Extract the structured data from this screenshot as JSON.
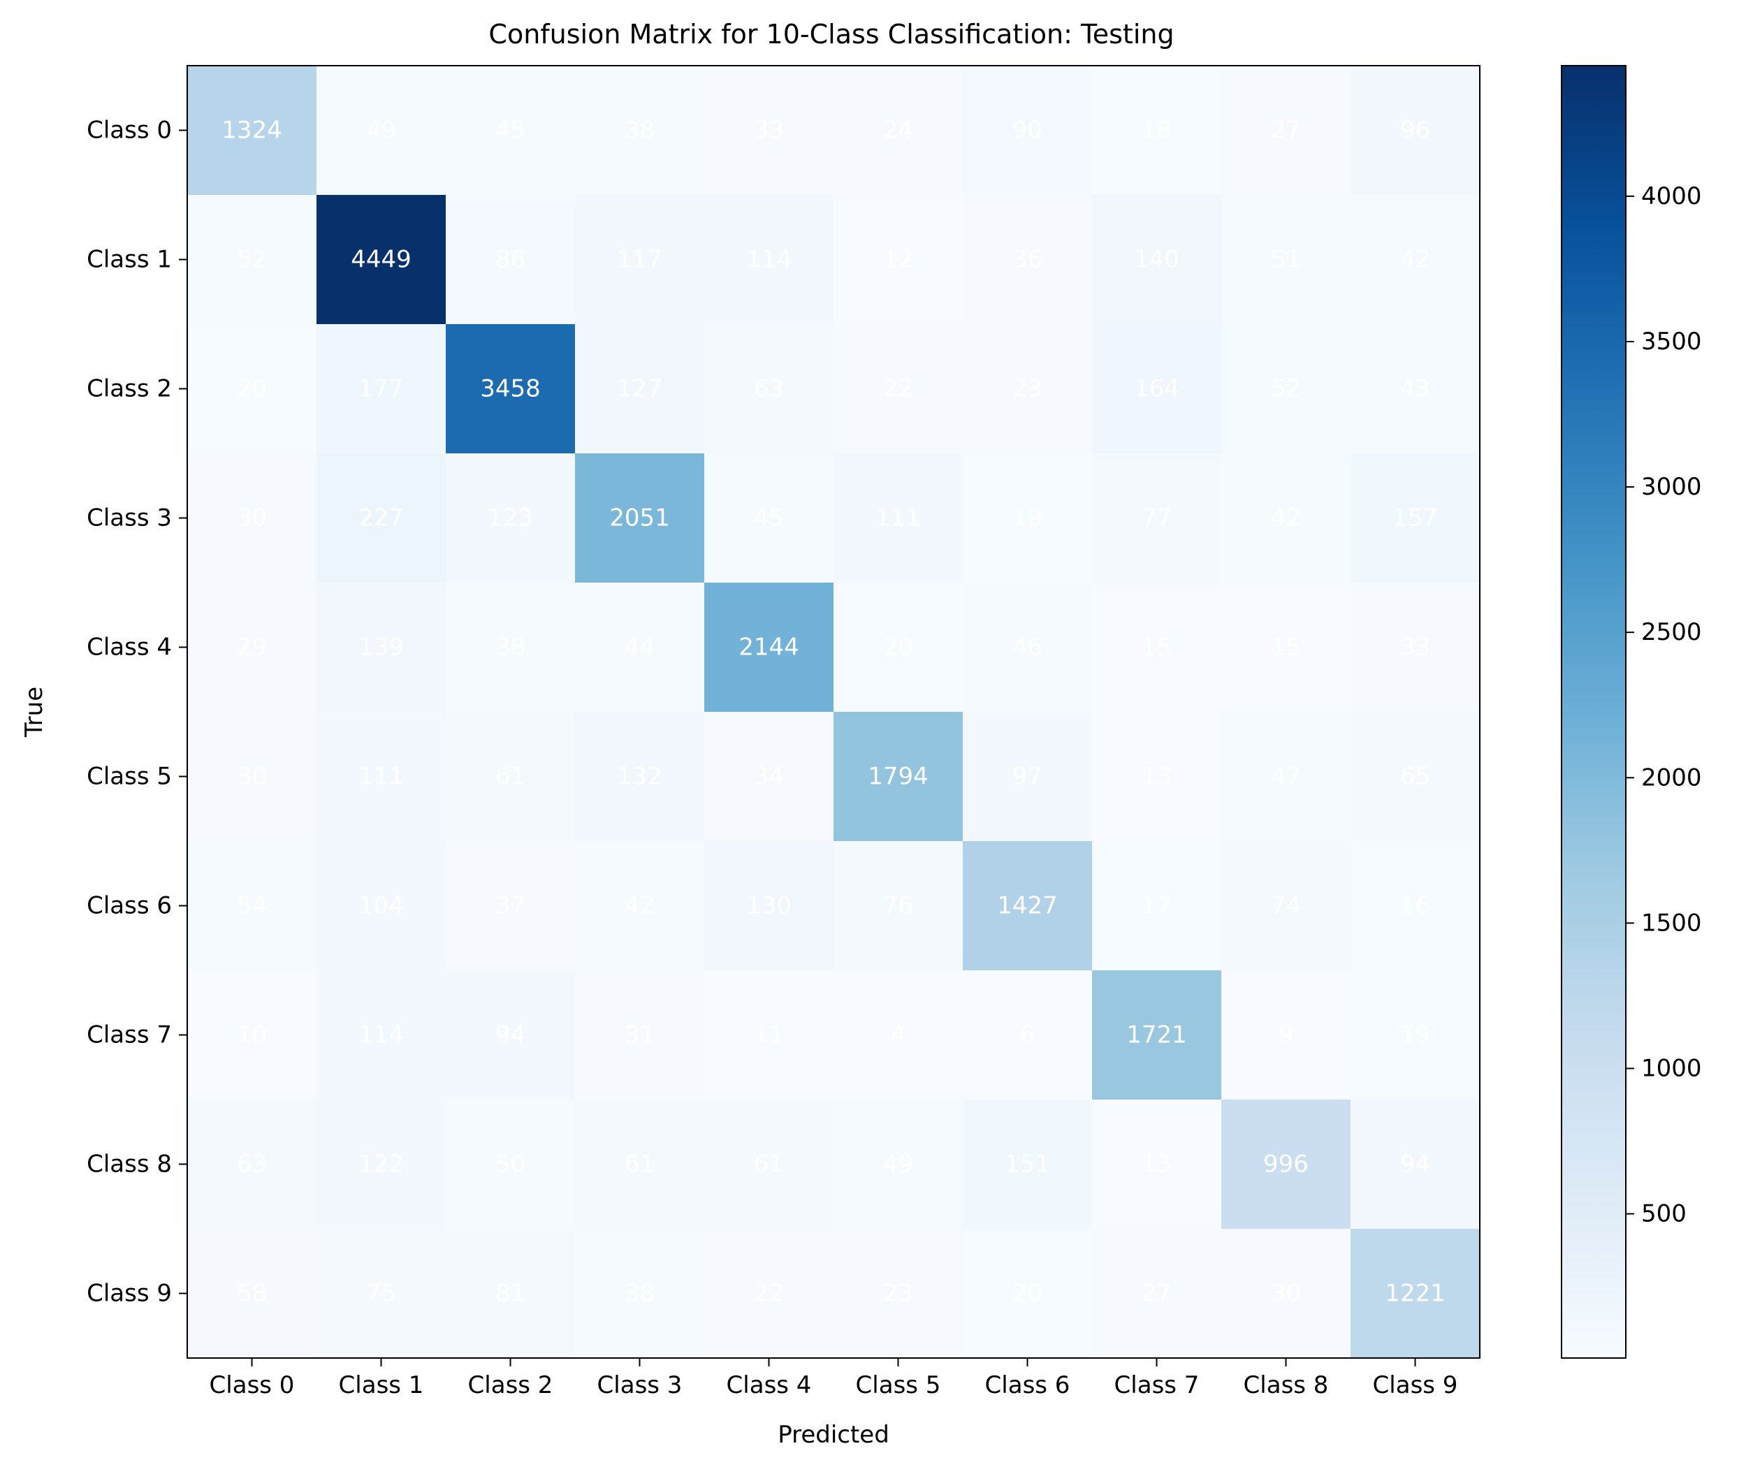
{
  "chart_data": {
    "type": "heatmap",
    "title": "Confusion Matrix for 10-Class Classification: Testing",
    "xlabel": "Predicted",
    "ylabel": "True",
    "x_categories": [
      "Class 0",
      "Class 1",
      "Class 2",
      "Class 3",
      "Class 4",
      "Class 5",
      "Class 6",
      "Class 7",
      "Class 8",
      "Class 9"
    ],
    "y_categories": [
      "Class 0",
      "Class 1",
      "Class 2",
      "Class 3",
      "Class 4",
      "Class 5",
      "Class 6",
      "Class 7",
      "Class 8",
      "Class 9"
    ],
    "values": [
      [
        1324,
        49,
        45,
        38,
        33,
        24,
        90,
        18,
        27,
        96
      ],
      [
        52,
        4449,
        86,
        117,
        114,
        12,
        36,
        140,
        51,
        42
      ],
      [
        20,
        177,
        3458,
        127,
        63,
        22,
        23,
        164,
        52,
        43
      ],
      [
        30,
        227,
        123,
        2051,
        45,
        111,
        19,
        77,
        42,
        157
      ],
      [
        29,
        139,
        38,
        44,
        2144,
        20,
        46,
        15,
        15,
        33
      ],
      [
        30,
        111,
        61,
        132,
        34,
        1794,
        97,
        13,
        47,
        65
      ],
      [
        54,
        104,
        37,
        42,
        130,
        76,
        1427,
        17,
        74,
        16
      ],
      [
        10,
        114,
        94,
        31,
        11,
        4,
        6,
        1721,
        9,
        19
      ],
      [
        63,
        122,
        50,
        61,
        61,
        49,
        151,
        13,
        996,
        94
      ],
      [
        58,
        75,
        81,
        38,
        22,
        23,
        20,
        27,
        30,
        1221
      ]
    ],
    "colormap": "Blues",
    "value_range": [
      4,
      4449
    ],
    "colorbar": {
      "ticks": [
        500,
        1000,
        1500,
        2000,
        2500,
        3000,
        3500,
        4000
      ],
      "tick_labels": [
        "500",
        "1000",
        "1500",
        "2000",
        "2500",
        "3000",
        "3500",
        "4000"
      ]
    },
    "cell_text_color": "#ffffff",
    "grid": false
  }
}
